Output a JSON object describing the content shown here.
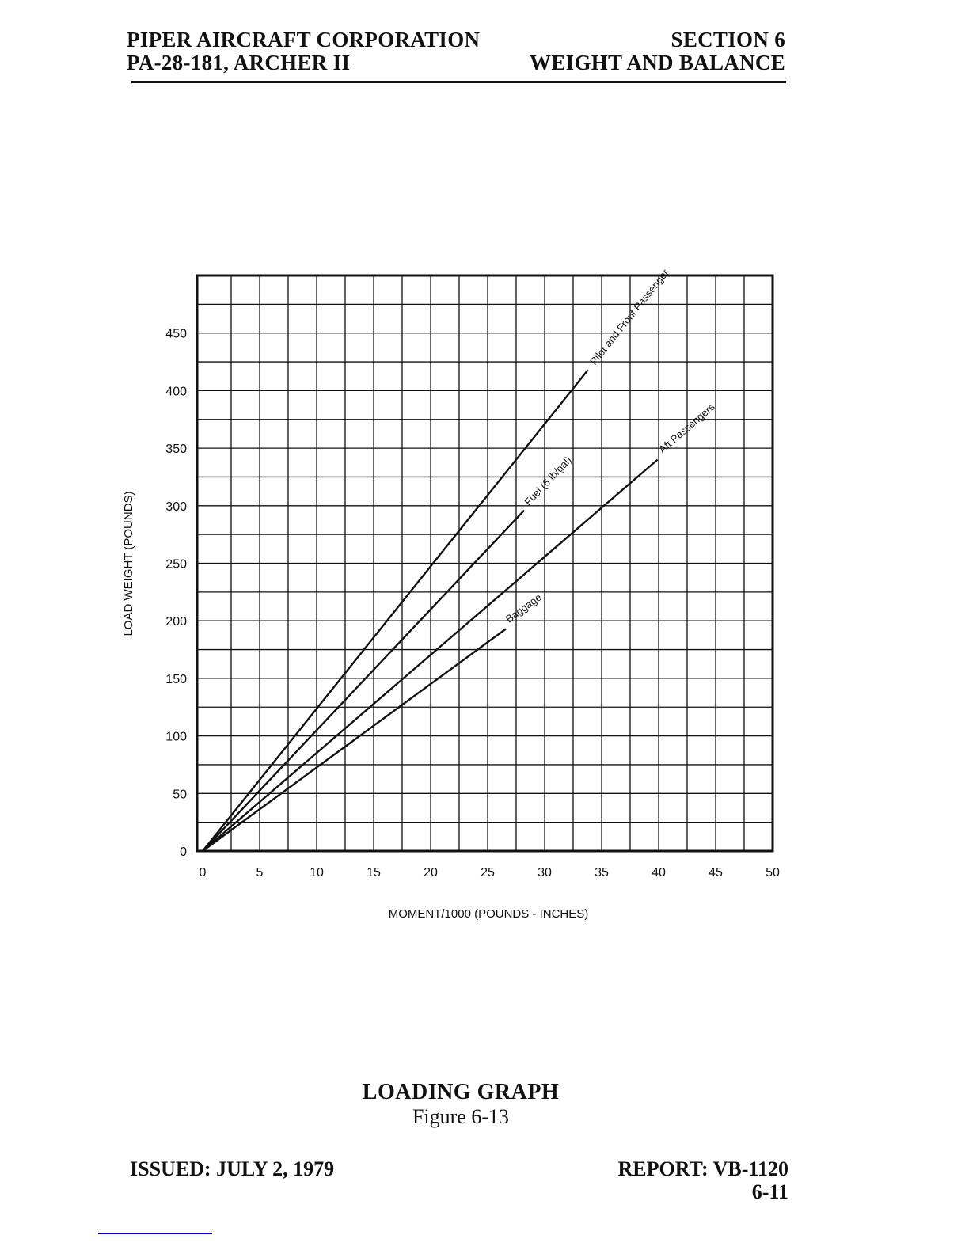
{
  "header": {
    "company": "PIPER AIRCRAFT CORPORATION",
    "model": "PA-28-181, ARCHER II",
    "section": "SECTION 6",
    "section_title": "WEIGHT AND BALANCE"
  },
  "chart_data": {
    "type": "line",
    "xlabel": "MOMENT/1000 (POUNDS - INCHES)",
    "ylabel": "LOAD WEIGHT (POUNDS)",
    "xlim": [
      0,
      50
    ],
    "ylim": [
      0,
      500
    ],
    "x_ticks": [
      "0",
      "5",
      "10",
      "15",
      "20",
      "25",
      "30",
      "35",
      "40",
      "45",
      "50"
    ],
    "y_ticks": [
      "0",
      "50",
      "100",
      "150",
      "200",
      "250",
      "300",
      "350",
      "400",
      "450"
    ],
    "grid": true,
    "series": [
      {
        "name": "Pilot and Front Passenger",
        "x": [
          0,
          33.8
        ],
        "y": [
          0,
          418
        ]
      },
      {
        "name": "Fuel (6 lb/gal)",
        "x": [
          0,
          28.2
        ],
        "y": [
          0,
          296
        ]
      },
      {
        "name": "Aft Passengers",
        "x": [
          0,
          39.9
        ],
        "y": [
          0,
          340
        ]
      },
      {
        "name": "Baggage",
        "x": [
          0,
          26.6
        ],
        "y": [
          0,
          193
        ]
      }
    ]
  },
  "caption": {
    "title": "LOADING GRAPH",
    "figure": "Figure 6-13"
  },
  "footer": {
    "issued": "ISSUED: JULY 2, 1979",
    "report": "REPORT: VB-1120",
    "page": "6-11"
  },
  "colors": {
    "ink": "#111111",
    "paper": "#ffffff"
  }
}
